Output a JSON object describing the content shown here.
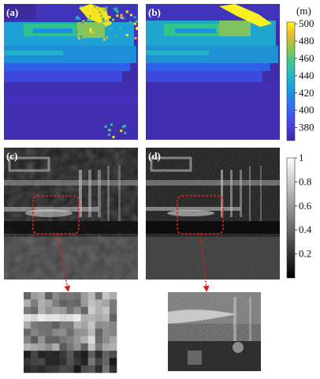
{
  "figure": {
    "panels": [
      {
        "label": "(a)",
        "kind": "range-map-noisy"
      },
      {
        "label": "(b)",
        "kind": "range-map-clean"
      },
      {
        "label": "(c)",
        "kind": "intensity-noisy"
      },
      {
        "label": "(d)",
        "kind": "intensity-clean"
      }
    ],
    "zoom_insets": [
      {
        "source": "(c)",
        "kind": "blocky-zoom"
      },
      {
        "source": "(d)",
        "kind": "smooth-zoom"
      }
    ],
    "colorbar_range": {
      "unit": "(m)",
      "ticks": [
        "500",
        "480",
        "460",
        "440",
        "420",
        "400",
        "380"
      ],
      "tick_values": [
        500,
        480,
        460,
        440,
        420,
        400,
        380
      ],
      "range": [
        365,
        502
      ],
      "colormap": "parula"
    },
    "colorbar_intensity": {
      "ticks": [
        "1",
        "0.8",
        "0.6",
        "0.4",
        "0.2"
      ],
      "tick_values": [
        1,
        0.8,
        0.6,
        0.4,
        0.2
      ],
      "range": [
        0,
        1
      ],
      "colormap": "gray"
    },
    "highlight_color": "#e0241b",
    "arrow_color": "#d81e18"
  }
}
